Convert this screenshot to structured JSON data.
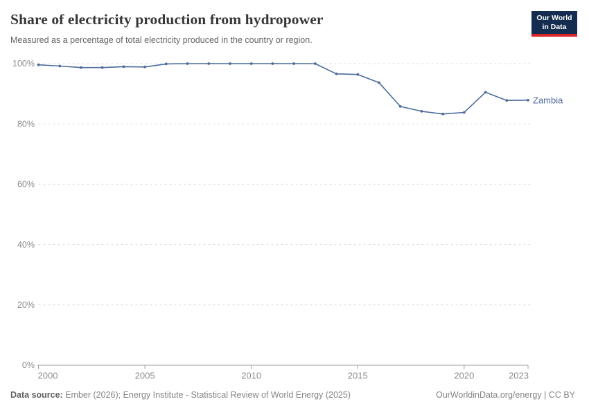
{
  "header": {
    "title": "Share of electricity production from hydropower",
    "subtitle": "Measured as a percentage of total electricity produced in the country or region.",
    "logo": {
      "line1": "Our World",
      "line2": "in Data",
      "bg_color": "#132c4f",
      "stripe_color": "#d8252b"
    }
  },
  "chart_data": {
    "type": "line",
    "title": "Share of electricity production from hydropower",
    "subtitle": "Measured as a percentage of total electricity produced in the country or region.",
    "xlabel": "",
    "ylabel": "",
    "xlim": [
      2000,
      2023
    ],
    "ylim": [
      0,
      100
    ],
    "x_ticks": [
      2000,
      2005,
      2010,
      2015,
      2020,
      2023
    ],
    "y_ticks": [
      0,
      20,
      40,
      60,
      80,
      100
    ],
    "y_tick_suffix": "%",
    "grid": "horizontal-dashed",
    "legend_position": "end-of-line-label",
    "series": [
      {
        "name": "Zambia",
        "color": "#4c6a9c",
        "x": [
          2000,
          2001,
          2002,
          2003,
          2004,
          2005,
          2006,
          2007,
          2008,
          2009,
          2010,
          2011,
          2012,
          2013,
          2014,
          2015,
          2016,
          2017,
          2018,
          2019,
          2020,
          2021,
          2022,
          2023
        ],
        "values": [
          99.6,
          99.2,
          98.7,
          98.7,
          99.0,
          98.9,
          99.9,
          100.0,
          100.0,
          100.0,
          100.0,
          100.0,
          100.0,
          100.0,
          96.6,
          96.4,
          93.7,
          85.8,
          84.2,
          83.3,
          83.8,
          90.5,
          87.8,
          87.9
        ]
      }
    ]
  },
  "footer": {
    "source_label": "Data source:",
    "source_text": "Ember (2026); Energy Institute - Statistical Review of World Energy (2025)",
    "link_text": "OurWorldinData.org/energy | CC BY"
  },
  "colors": {
    "accent_line": "#4c6a9c",
    "grid": "#dcdcdc",
    "axis": "#a1a1a1",
    "tick_label": "#8c8c8c",
    "title_text": "#383636",
    "subtitle_text": "#646464",
    "footer_text": "#858585",
    "logo_bg": "#132c4f",
    "logo_stripe": "#d8252b"
  }
}
